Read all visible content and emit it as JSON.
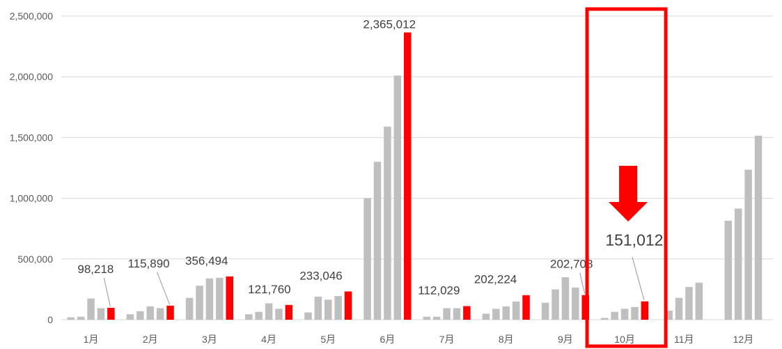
{
  "chart_data": {
    "type": "bar",
    "title": "",
    "xlabel": "",
    "ylabel": "",
    "ylim": [
      0,
      2500000
    ],
    "y_ticks": [
      0,
      500000,
      1000000,
      1500000,
      2000000,
      2500000
    ],
    "y_tick_labels": [
      "0",
      "500,000",
      "1,000,000",
      "1,500,000",
      "2,000,000",
      "2,500,000"
    ],
    "grid": true,
    "legend": "none",
    "categories": [
      "1月",
      "2月",
      "3月",
      "4月",
      "5月",
      "6月",
      "7月",
      "8月",
      "9月",
      "10月",
      "11月",
      "12月"
    ],
    "series": [
      {
        "color": "#bfbfbf",
        "values": [
          20000,
          45000,
          180000,
          45000,
          60000,
          1000000,
          25000,
          50000,
          140000,
          15000,
          75000,
          815000
        ]
      },
      {
        "color": "#bfbfbf",
        "values": [
          25000,
          70000,
          280000,
          65000,
          190000,
          1300000,
          25000,
          90000,
          250000,
          65000,
          180000,
          915000
        ]
      },
      {
        "color": "#bfbfbf",
        "values": [
          175000,
          110000,
          340000,
          135000,
          165000,
          1590000,
          95000,
          110000,
          350000,
          90000,
          270000,
          1235000
        ]
      },
      {
        "color": "#bfbfbf",
        "values": [
          95000,
          95000,
          345000,
          90000,
          195000,
          2010000,
          95000,
          150000,
          265000,
          105000,
          305000,
          1515000
        ]
      },
      {
        "color": "#ff0000",
        "values": [
          98218,
          115890,
          356494,
          121760,
          233046,
          2365012,
          112029,
          202224,
          202708,
          151012,
          null,
          null
        ]
      }
    ],
    "data_labels": [
      "98,218",
      "115,890",
      "356,494",
      "121,760",
      "233,046",
      "2,365,012",
      "112,029",
      "202,224",
      "202,708",
      "151,012"
    ],
    "highlight": {
      "category": "10月",
      "color": "#ff0000",
      "arrow": "down"
    }
  }
}
